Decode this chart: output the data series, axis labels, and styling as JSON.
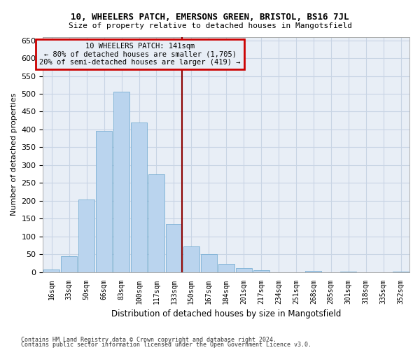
{
  "title1": "10, WHEELERS PATCH, EMERSONS GREEN, BRISTOL, BS16 7JL",
  "title2": "Size of property relative to detached houses in Mangotsfield",
  "xlabel": "Distribution of detached houses by size in Mangotsfield",
  "ylabel": "Number of detached properties",
  "footnote1": "Contains HM Land Registry data © Crown copyright and database right 2024.",
  "footnote2": "Contains public sector information licensed under the Open Government Licence v3.0.",
  "categories": [
    "16sqm",
    "33sqm",
    "50sqm",
    "66sqm",
    "83sqm",
    "100sqm",
    "117sqm",
    "133sqm",
    "150sqm",
    "167sqm",
    "184sqm",
    "201sqm",
    "217sqm",
    "234sqm",
    "251sqm",
    "268sqm",
    "285sqm",
    "301sqm",
    "318sqm",
    "335sqm",
    "352sqm"
  ],
  "values": [
    8,
    45,
    203,
    395,
    505,
    420,
    275,
    135,
    73,
    51,
    22,
    11,
    6,
    0,
    0,
    3,
    0,
    2,
    0,
    0,
    2
  ],
  "bar_color": "#bad4ee",
  "bar_edge_color": "#7aafd4",
  "grid_color": "#c8d4e4",
  "bg_color": "#e8eef6",
  "vline_color": "#8b0000",
  "annotation_text": "10 WHEELERS PATCH: 141sqm\n← 80% of detached houses are smaller (1,705)\n20% of semi-detached houses are larger (419) →",
  "annotation_box_color": "#cc0000",
  "ylim": [
    0,
    660
  ],
  "yticks": [
    0,
    50,
    100,
    150,
    200,
    250,
    300,
    350,
    400,
    450,
    500,
    550,
    600,
    650
  ],
  "fig_bg": "#ffffff"
}
